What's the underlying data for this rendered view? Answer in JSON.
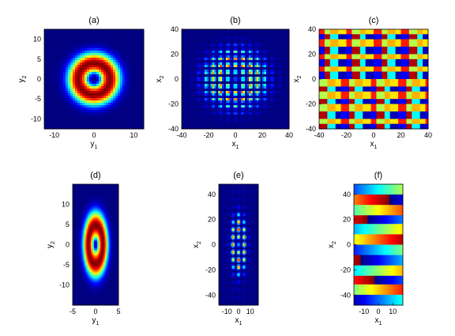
{
  "panels": [
    {
      "title": "(a)",
      "xlabel": "y",
      "xlabel_sub": "1",
      "ylabel": "y",
      "ylabel_sub": "2",
      "xticks": [
        "-10",
        "0",
        "10"
      ],
      "yticks": [
        "10",
        "5",
        "0",
        "-5",
        "-10"
      ]
    },
    {
      "title": "(b)",
      "xlabel": "x",
      "xlabel_sub": "1",
      "ylabel": "x",
      "ylabel_sub": "2",
      "xticks": [
        "-40",
        "-20",
        "0",
        "20",
        "40"
      ],
      "yticks": [
        "40",
        "20",
        "0",
        "-20",
        "-40"
      ]
    },
    {
      "title": "(c)",
      "xlabel": "x",
      "xlabel_sub": "1",
      "ylabel": "x",
      "ylabel_sub": "2",
      "xticks": [
        "-40",
        "-20",
        "0",
        "20",
        "40"
      ],
      "yticks": [
        "40",
        "20",
        "0",
        "-20",
        "-40"
      ]
    },
    {
      "title": "(d)",
      "xlabel": "y",
      "xlabel_sub": "1",
      "ylabel": "y",
      "ylabel_sub": "2",
      "xticks": [
        "-5",
        "0",
        "5"
      ],
      "yticks": [
        "10",
        "5",
        "0",
        "-5",
        "-10"
      ]
    },
    {
      "title": "(e)",
      "xlabel": "x",
      "xlabel_sub": "1",
      "ylabel": "x",
      "ylabel_sub": "2",
      "xticks": [
        "-10",
        "0",
        "10"
      ],
      "yticks": [
        "40",
        "20",
        "0",
        "-20",
        "-40"
      ]
    },
    {
      "title": "(f)",
      "xlabel": "x",
      "xlabel_sub": "1",
      "ylabel": "x",
      "ylabel_sub": "2",
      "xticks": [
        "-10",
        "0",
        "10"
      ],
      "yticks": [
        "40",
        "20",
        "0",
        "-20",
        "-40"
      ]
    }
  ],
  "chart_data": [
    {
      "type": "heatmap",
      "title": "(a)",
      "xlabel": "y1",
      "ylabel": "y2",
      "xlim": [
        -12.5,
        12.5
      ],
      "ylim": [
        -12.5,
        12.5
      ],
      "colormap": "jet",
      "pattern": "ring (vortex) intensity, zero at center, peak radius ~4",
      "ring_radius": 4
    },
    {
      "type": "heatmap",
      "title": "(b)",
      "xlabel": "x1",
      "ylabel": "x2",
      "xlim": [
        -40,
        40
      ],
      "ylim": [
        -40,
        40
      ],
      "colormap": "jet",
      "pattern": "lattice of bright spots in ring arrangement",
      "lattice_spacing": 5.5,
      "ring_radius": 14
    },
    {
      "type": "heatmap",
      "title": "(c)",
      "xlabel": "x1",
      "ylabel": "x2",
      "xlim": [
        -40,
        40
      ],
      "ylim": [
        -40,
        40
      ],
      "colormap": "jet",
      "pattern": "phase checkerboard, shifted across x2 = 0"
    },
    {
      "type": "heatmap",
      "title": "(d)",
      "xlabel": "y1",
      "ylabel": "y2",
      "xlim": [
        -5,
        5
      ],
      "ylim": [
        -15,
        15
      ],
      "colormap": "jet",
      "pattern": "elliptical ring intensity"
    },
    {
      "type": "heatmap",
      "title": "(e)",
      "xlabel": "x1",
      "ylabel": "x2",
      "xlim": [
        -17,
        17
      ],
      "ylim": [
        -48,
        48
      ],
      "colormap": "jet",
      "pattern": "elongated lattice of bright spots"
    },
    {
      "type": "heatmap",
      "title": "(f)",
      "xlabel": "x1",
      "ylabel": "x2",
      "xlim": [
        -17,
        17
      ],
      "ylim": [
        -48,
        48
      ],
      "colormap": "jet",
      "pattern": "horizontal phase stripes"
    }
  ]
}
